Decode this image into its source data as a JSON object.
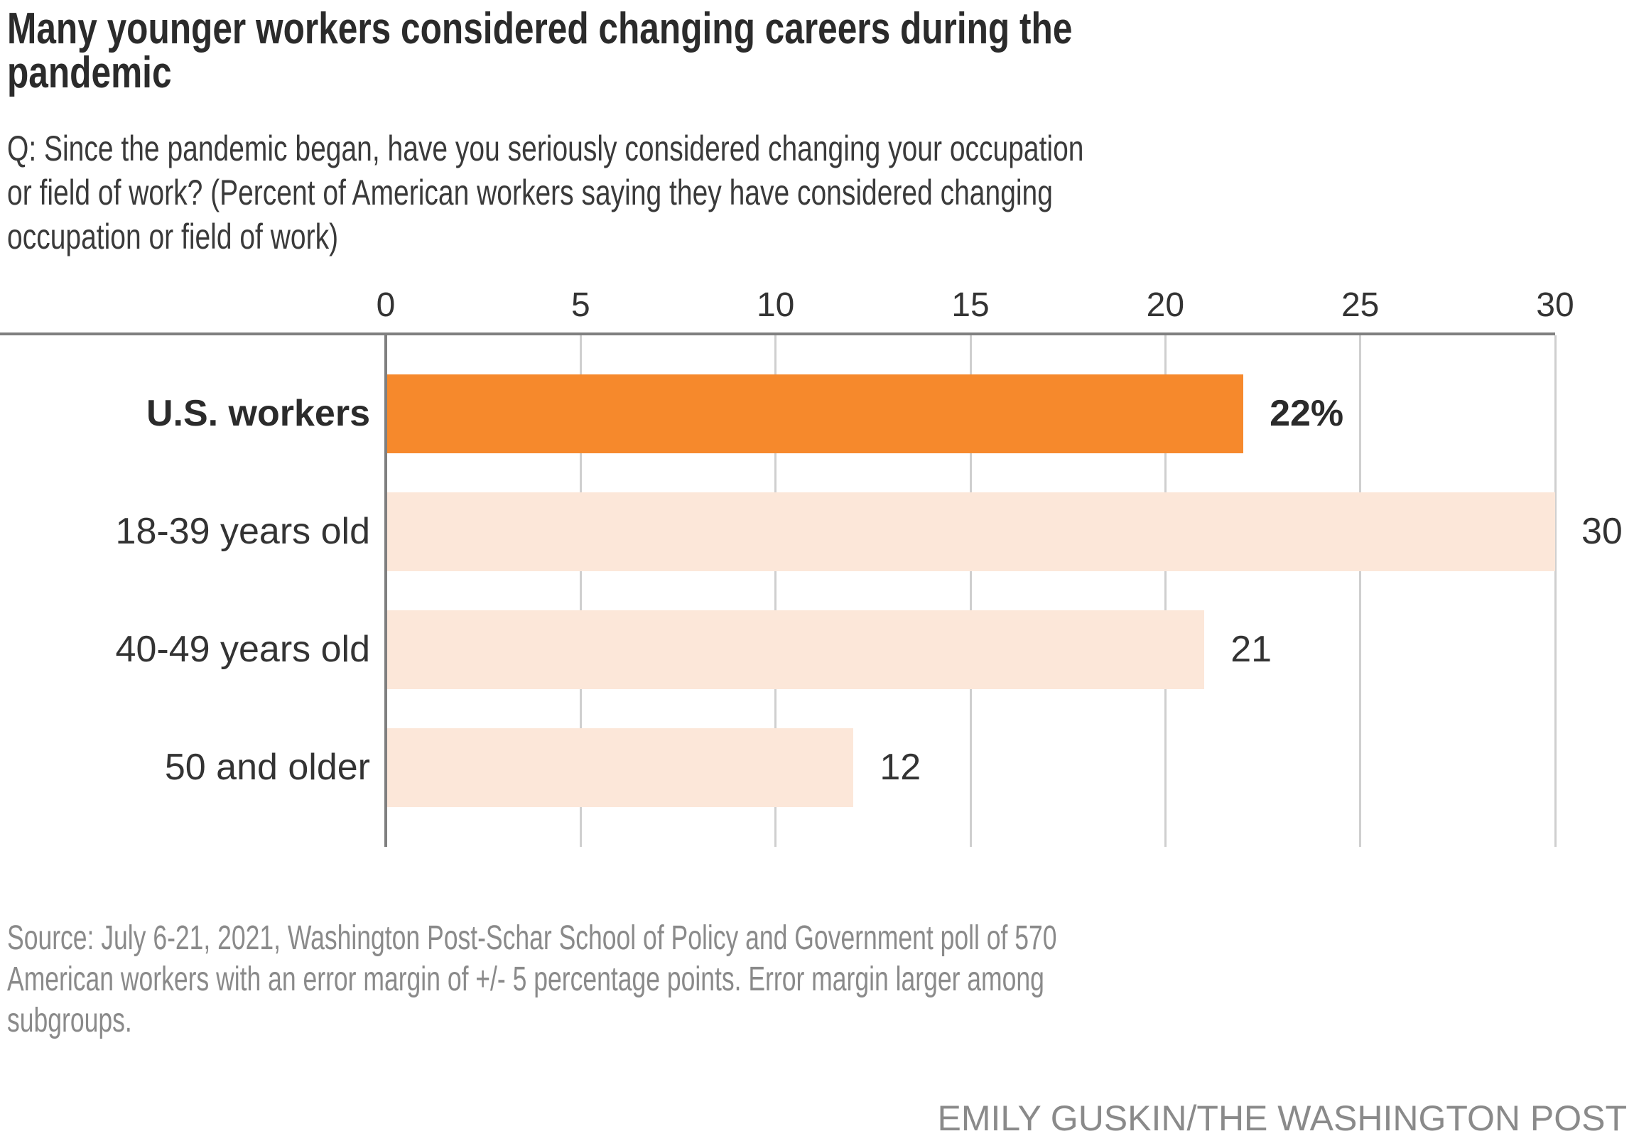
{
  "header": {
    "title_lines": [
      "Many younger workers considered changing careers during the",
      "pandemic"
    ],
    "subtitle_lines": [
      "Q: Since the pandemic began, have you seriously considered changing your occupation",
      "or field of work? (Percent of American workers saying they have considered changing",
      "occupation or field of work)"
    ]
  },
  "footer": {
    "source_lines": [
      "Source: July 6-21, 2021, Washington Post-Schar School of Policy and Government poll of 570",
      "American workers with an error margin of +/- 5 percentage points. Error margin larger among",
      "subgroups."
    ],
    "credit": "EMILY GUSKIN/THE WASHINGTON POST"
  },
  "colors": {
    "highlight_bar": "#F6892C",
    "bar": "#FCE7D9",
    "axis": "#7F7F7F",
    "zero": "#7F7F7F",
    "grid": "#CFCFCF",
    "title_text": "#2B2B2B",
    "body_text": "#3A3A3A",
    "text_strong": "#333333",
    "muted_text": "#8A8A8A"
  },
  "chart_data": {
    "type": "bar",
    "orientation": "horizontal",
    "title": "Many younger workers considered changing careers during the pandemic",
    "subtitle": "Q: Since the pandemic began, have you seriously considered changing your occupation or field of work? (Percent of American workers saying they have considered changing occupation or field of work)",
    "categories": [
      "U.S. workers",
      "18-39 years old",
      "40-49 years old",
      "50 and older"
    ],
    "values": [
      22,
      30,
      21,
      12
    ],
    "value_labels": [
      "22%",
      "30",
      "21",
      "12"
    ],
    "highlight_index": 0,
    "x_ticks": [
      0,
      5,
      10,
      15,
      20,
      25,
      30
    ],
    "xlim": [
      0,
      30
    ],
    "xlabel": "",
    "ylabel": "",
    "unit": "percent of American workers",
    "grid": true,
    "legend": "none",
    "axis_position": "top"
  }
}
